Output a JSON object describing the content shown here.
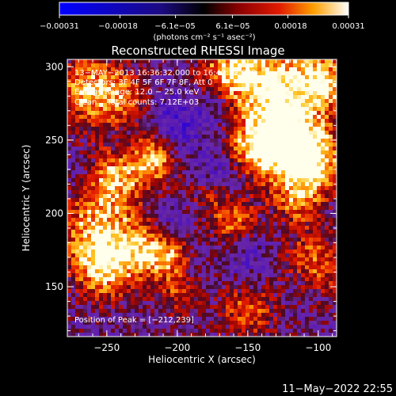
{
  "chart_data": {
    "type": "heatmap",
    "title": "Reconstructed RHESSI Image",
    "xlabel": "Heliocentric X (arcsec)",
    "ylabel": "Heliocentric Y (arcsec)",
    "xlim": [
      -278,
      -87
    ],
    "ylim": [
      116,
      305
    ],
    "xticks": [
      -250,
      -200,
      -150,
      -100
    ],
    "yticks": [
      150,
      200,
      250,
      300
    ],
    "xtick_labels": [
      "−250",
      "−200",
      "−150",
      "−100"
    ],
    "ytick_labels": [
      "150",
      "200",
      "250",
      "300"
    ],
    "colorbar": {
      "unit": "(photons cm⁻² s⁻¹ asec⁻²)",
      "range": [
        -0.00031,
        0.00031
      ],
      "ticks": [
        -0.00031,
        -0.00018,
        -6.1e-05,
        6.1e-05,
        0.00018,
        0.00031
      ],
      "tick_labels": [
        "−0.00031",
        "−0.00018",
        "−6.1e−05",
        "6.1e−05",
        "0.00018",
        "0.00031"
      ]
    },
    "annotations": [
      "13−MAY−2013 16:36:32.000 to 16:42:32.000",
      "Detectors: 3F 4F 5F 6F 7F 8F, Att 0",
      "Energy Range: 12.0 − 25.0 keV",
      "Clean    Total counts: 7.12E+03"
    ],
    "peak_label": "Position of Peak = [−212,239]",
    "peak": [
      -212,
      239
    ]
  },
  "footer": {
    "date": "11−May−2022 22:55"
  }
}
